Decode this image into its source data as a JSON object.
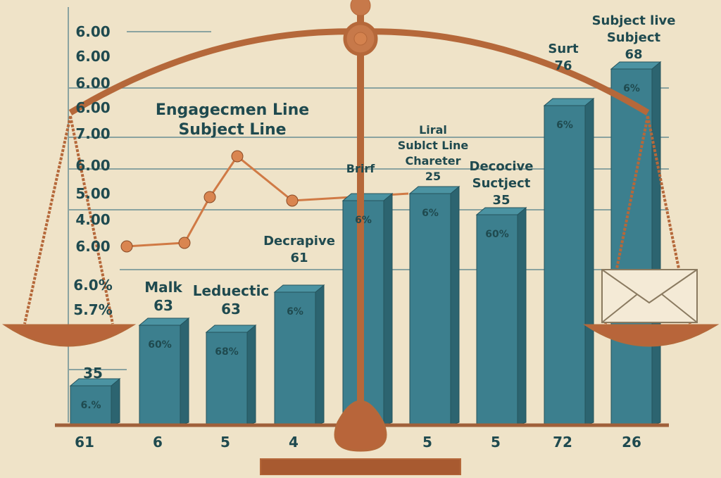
{
  "y_axis_labels": [
    "6.00",
    "6.00",
    "6.00",
    "6.00",
    "7.00",
    "6.00",
    "5.00",
    "4.00",
    "6.00",
    "6.0%",
    "5.7%",
    "35"
  ],
  "annotations": [
    {
      "lines": [
        "Engagecmen Line",
        "Subject Line"
      ]
    },
    {
      "lines": [
        "Malk",
        "63"
      ]
    },
    {
      "lines": [
        "Leduectic",
        "63"
      ]
    },
    {
      "lines": [
        "Decrapive",
        "61"
      ]
    },
    {
      "lines": [
        "Brirf"
      ]
    },
    {
      "lines": [
        "Liral",
        "Sublct Line",
        "Chareter",
        "25"
      ]
    },
    {
      "lines": [
        "Decocive",
        "Suctject",
        "35"
      ]
    },
    {
      "lines": [
        "Surt",
        "76"
      ]
    },
    {
      "lines": [
        "Subject live",
        "Subject",
        "68"
      ]
    }
  ],
  "bars": [
    {
      "label": "6.%"
    },
    {
      "label": "60%"
    },
    {
      "label": "68%"
    },
    {
      "label": "6%"
    },
    {
      "label": "6%"
    },
    {
      "label": "6%"
    },
    {
      "label": "60%"
    },
    {
      "label": "6%"
    },
    {
      "label": "6%"
    }
  ],
  "x_labels": [
    "61",
    "6",
    "5",
    "4",
    "5",
    "5",
    "72",
    "26"
  ]
}
